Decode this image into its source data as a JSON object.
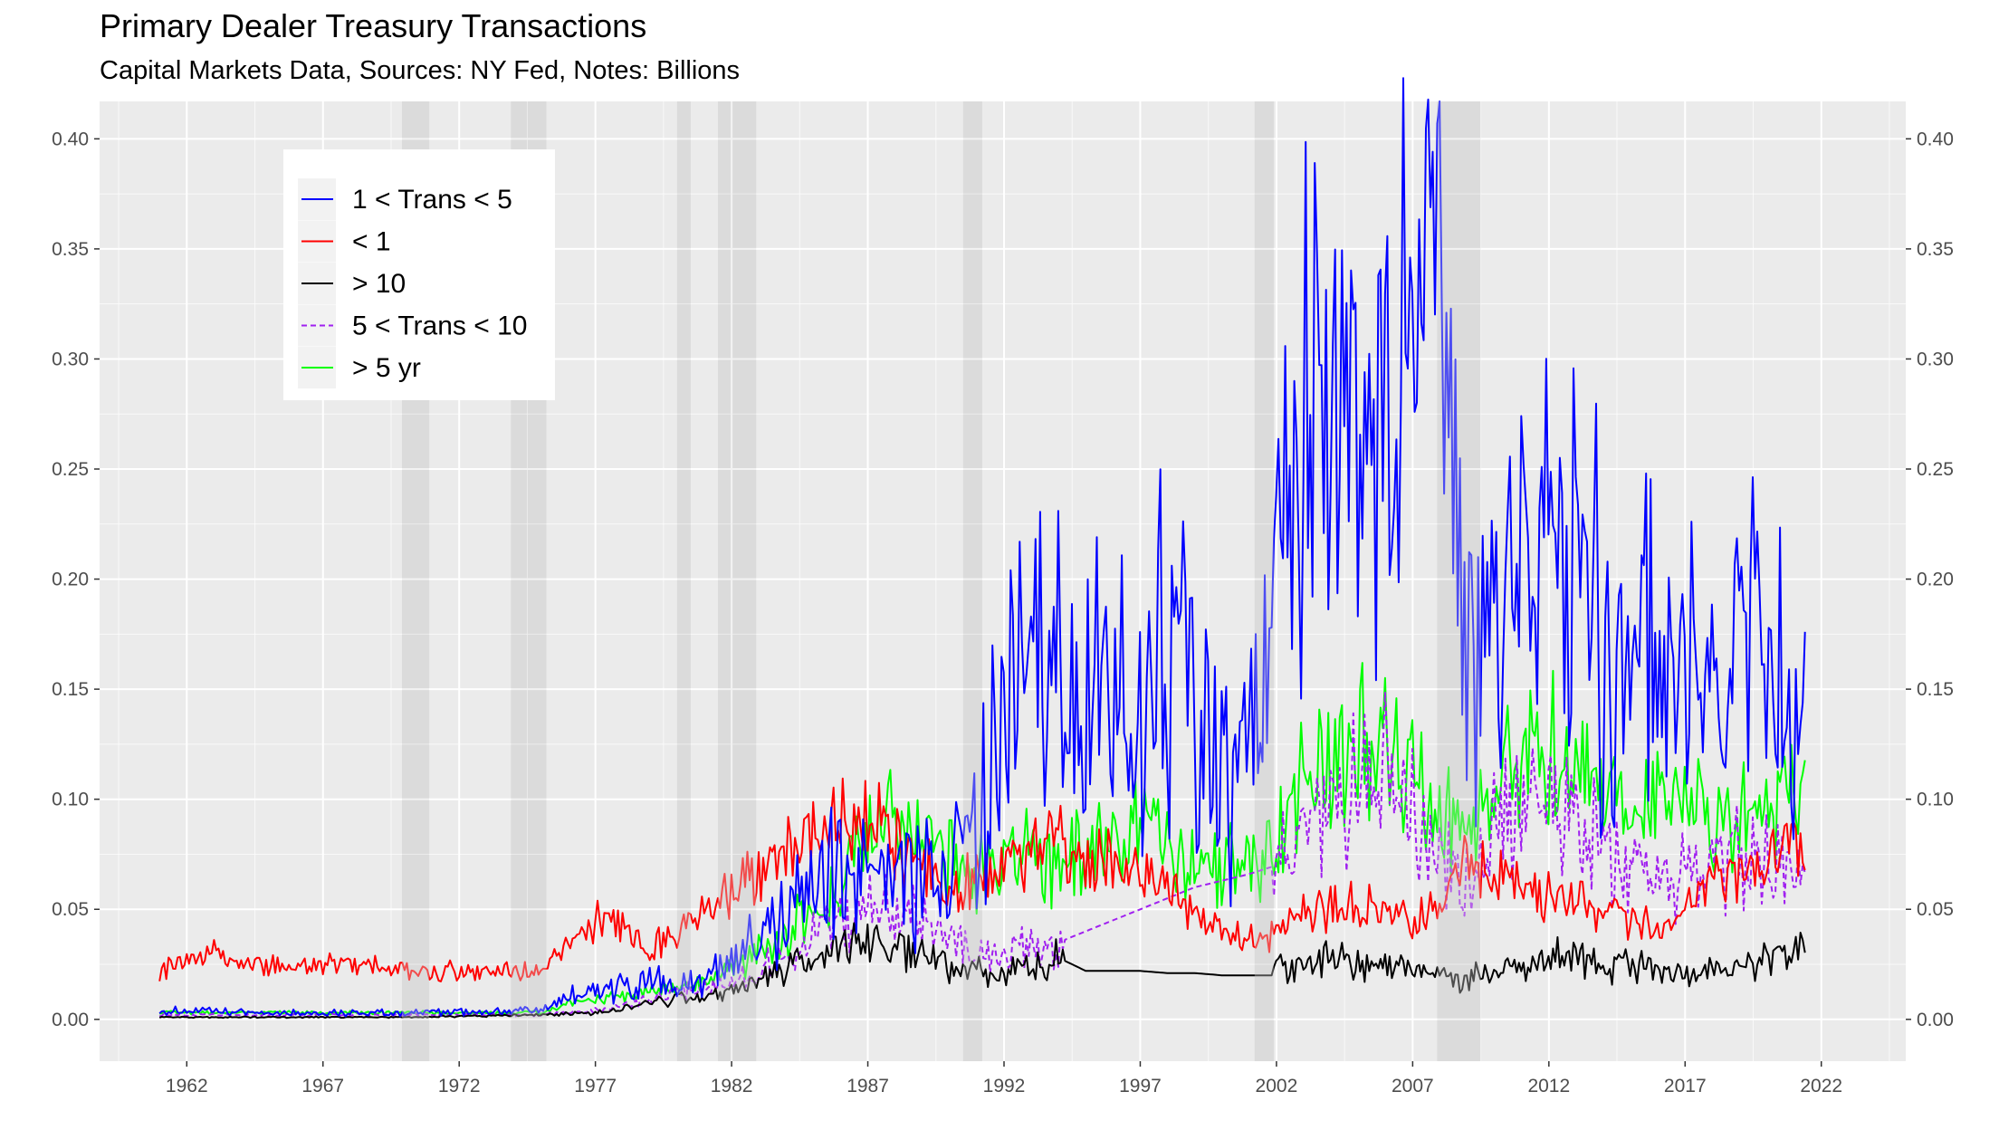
{
  "title": "Primary Dealer Treasury Transactions",
  "subtitle": "Capital Markets Data, Sources: NY Fed, Notes: Billions",
  "colors": {
    "panel": "#EBEBEB",
    "grid": "#FFFFFF",
    "recession": "#D9D9D9",
    "one_to_five": "#0000FF",
    "under_one": "#FF0000",
    "over_ten": "#000000",
    "five_to_ten": "#A020F0",
    "over_five_yr": "#00FF00"
  },
  "chart_data": {
    "type": "line",
    "title": "Primary Dealer Treasury Transactions",
    "subtitle": "Capital Markets Data, Sources: NY Fed, Notes: Billions",
    "xlabel": "",
    "ylabel": "",
    "x_tick_labels": [
      "1962",
      "1967",
      "1972",
      "1977",
      "1982",
      "1987",
      "1992",
      "1997",
      "2002",
      "2007",
      "2012",
      "2017",
      "2022"
    ],
    "x_ticks": [
      1962,
      1967,
      1972,
      1977,
      1982,
      1987,
      1992,
      1997,
      2002,
      2007,
      2012,
      2017,
      2022
    ],
    "y_tick_labels": [
      "0.00",
      "0.05",
      "0.10",
      "0.15",
      "0.20",
      "0.25",
      "0.30",
      "0.35",
      "0.40"
    ],
    "y_ticks": [
      0,
      0.05,
      0.1,
      0.15,
      0.2,
      0.25,
      0.3,
      0.35,
      0.4
    ],
    "xlim": [
      1958.8,
      2025.1
    ],
    "ylim": [
      -0.019,
      0.417
    ],
    "secondary_y_axis": true,
    "grid": true,
    "legend_position": "top-left",
    "recession_shading": [
      [
        1969.9,
        1970.9
      ],
      [
        1973.9,
        1975.2
      ],
      [
        1980.0,
        1980.5
      ],
      [
        1981.5,
        1982.9
      ],
      [
        1990.5,
        1991.2
      ],
      [
        2001.2,
        2001.9
      ],
      [
        2007.9,
        2009.5
      ]
    ],
    "series": [
      {
        "name": "1 < Trans < 5",
        "color": "#0000FF",
        "dash": "solid",
        "x": [
          1961,
          1965,
          1970,
          1975,
          1976,
          1977,
          1978,
          1979,
          1980,
          1981,
          1982,
          1983,
          1984,
          1985,
          1986,
          1987,
          1988,
          1989,
          1990,
          1991,
          1992,
          1993,
          1994,
          1995,
          1996,
          1997,
          1998,
          1999,
          2000,
          2001,
          2002,
          2003,
          2004,
          2005,
          2006,
          2007,
          2008,
          2009,
          2010,
          2011,
          2012,
          2013,
          2014,
          2015,
          2016,
          2017,
          2018,
          2019,
          2020,
          2021,
          2021.4
        ],
        "y": [
          0.004,
          0.003,
          0.003,
          0.004,
          0.01,
          0.013,
          0.015,
          0.016,
          0.015,
          0.017,
          0.024,
          0.035,
          0.045,
          0.06,
          0.07,
          0.075,
          0.07,
          0.065,
          0.07,
          0.09,
          0.13,
          0.16,
          0.15,
          0.14,
          0.145,
          0.15,
          0.17,
          0.15,
          0.11,
          0.12,
          0.22,
          0.27,
          0.28,
          0.28,
          0.27,
          0.3,
          0.3,
          0.16,
          0.18,
          0.22,
          0.2,
          0.21,
          0.18,
          0.16,
          0.16,
          0.15,
          0.15,
          0.16,
          0.17,
          0.14,
          0.138
        ]
      },
      {
        "name": "< 1",
        "color": "#FF0000",
        "dash": "solid",
        "x": [
          1961,
          1962,
          1963,
          1964,
          1965,
          1967,
          1969,
          1971,
          1973,
          1975,
          1976,
          1977,
          1978,
          1979,
          1980,
          1981,
          1982,
          1983,
          1984,
          1985,
          1986,
          1987,
          1988,
          1989,
          1990,
          1991,
          1992,
          1993,
          1994,
          1995,
          1996,
          1997,
          1998,
          1999,
          2000,
          2001,
          2002,
          2003,
          2004,
          2005,
          2006,
          2007,
          2008,
          2009,
          2010,
          2011,
          2012,
          2013,
          2014,
          2015,
          2016,
          2017,
          2018,
          2019,
          2020,
          2021,
          2021.4
        ],
        "y": [
          0.022,
          0.027,
          0.03,
          0.026,
          0.024,
          0.025,
          0.024,
          0.022,
          0.022,
          0.022,
          0.035,
          0.045,
          0.04,
          0.033,
          0.04,
          0.05,
          0.058,
          0.068,
          0.075,
          0.085,
          0.09,
          0.095,
          0.08,
          0.07,
          0.06,
          0.065,
          0.07,
          0.075,
          0.08,
          0.075,
          0.07,
          0.068,
          0.06,
          0.05,
          0.04,
          0.035,
          0.04,
          0.048,
          0.05,
          0.052,
          0.048,
          0.043,
          0.055,
          0.07,
          0.065,
          0.058,
          0.055,
          0.055,
          0.045,
          0.045,
          0.04,
          0.05,
          0.06,
          0.068,
          0.07,
          0.085,
          0.075
        ]
      },
      {
        "name": "> 10",
        "color": "#000000",
        "dash": "solid",
        "x": [
          1961,
          1965,
          1970,
          1975,
          1977,
          1978,
          1979,
          1980,
          1981,
          1982,
          1983,
          1984,
          1985,
          1986,
          1987,
          1988,
          1989,
          1990,
          1991,
          1992,
          1993,
          1994,
          1995,
          1996,
          1997,
          1998,
          1999,
          2000,
          2001,
          2001.9,
          2002,
          2003,
          2004,
          2005,
          2006,
          2007,
          2008,
          2009,
          2010,
          2011,
          2012,
          2013,
          2014,
          2015,
          2016,
          2017,
          2018,
          2019,
          2020,
          2021,
          2021.4
        ],
        "y": [
          0.001,
          0.001,
          0.001,
          0.002,
          0.003,
          0.005,
          0.008,
          0.009,
          0.01,
          0.013,
          0.017,
          0.022,
          0.028,
          0.033,
          0.036,
          0.033,
          0.032,
          0.025,
          0.022,
          0.022,
          0.025,
          0.028,
          0.022,
          0.022,
          0.022,
          0.021,
          0.021,
          0.02,
          0.02,
          0.02,
          0.022,
          0.025,
          0.027,
          0.026,
          0.025,
          0.023,
          0.02,
          0.018,
          0.022,
          0.026,
          0.028,
          0.027,
          0.024,
          0.024,
          0.022,
          0.022,
          0.023,
          0.024,
          0.028,
          0.032,
          0.033
        ]
      },
      {
        "name": "5 < Trans < 10",
        "color": "#A020F0",
        "dash": "dashed",
        "x": [
          1961,
          1965,
          1970,
          1975,
          1977,
          1978,
          1979,
          1980,
          1981,
          1982,
          1983,
          1984,
          1985,
          1986,
          1987,
          1988,
          1989,
          1990,
          1991,
          1992,
          1993,
          1994,
          1995,
          1996,
          1997,
          1998,
          1999,
          2000,
          2001,
          2002,
          2003,
          2004,
          2005,
          2006,
          2007,
          2008,
          2009,
          2010,
          2011,
          2012,
          2013,
          2014,
          2015,
          2016,
          2017,
          2018,
          2019,
          2020,
          2021,
          2021.4
        ],
        "y": [
          0.002,
          0.002,
          0.002,
          0.002,
          0.004,
          0.006,
          0.01,
          0.012,
          0.014,
          0.017,
          0.022,
          0.03,
          0.038,
          0.045,
          0.05,
          0.048,
          0.045,
          0.038,
          0.03,
          0.03,
          0.032,
          0.035,
          0.04,
          0.045,
          0.05,
          0.055,
          0.06,
          0.063,
          0.066,
          0.07,
          0.085,
          0.1,
          0.105,
          0.11,
          0.1,
          0.075,
          0.06,
          0.085,
          0.1,
          0.1,
          0.09,
          0.08,
          0.07,
          0.065,
          0.065,
          0.07,
          0.075,
          0.07,
          0.065,
          0.067
        ]
      },
      {
        "name": "> 5 yr",
        "color": "#00FF00",
        "dash": "solid",
        "x": [
          1961,
          1965,
          1970,
          1975,
          1976,
          1977,
          1978,
          1979,
          1980,
          1981,
          1982,
          1983,
          1984,
          1985,
          1986,
          1987,
          1988,
          1989,
          1990,
          1991,
          1992,
          1993,
          1994,
          1995,
          1996,
          1997,
          1998,
          1999,
          2000,
          2001,
          2002,
          2003,
          2004,
          2005,
          2006,
          2007,
          2008,
          2009,
          2010,
          2011,
          2012,
          2013,
          2014,
          2015,
          2016,
          2017,
          2018,
          2019,
          2020,
          2021,
          2021.4
        ],
        "y": [
          0.003,
          0.003,
          0.003,
          0.003,
          0.007,
          0.009,
          0.01,
          0.012,
          0.014,
          0.016,
          0.022,
          0.03,
          0.04,
          0.05,
          0.06,
          0.085,
          0.09,
          0.08,
          0.07,
          0.065,
          0.07,
          0.075,
          0.07,
          0.075,
          0.08,
          0.085,
          0.08,
          0.075,
          0.07,
          0.07,
          0.08,
          0.11,
          0.12,
          0.13,
          0.12,
          0.11,
          0.095,
          0.08,
          0.1,
          0.12,
          0.125,
          0.115,
          0.1,
          0.1,
          0.1,
          0.1,
          0.09,
          0.09,
          0.095,
          0.1,
          0.1
        ]
      }
    ]
  }
}
